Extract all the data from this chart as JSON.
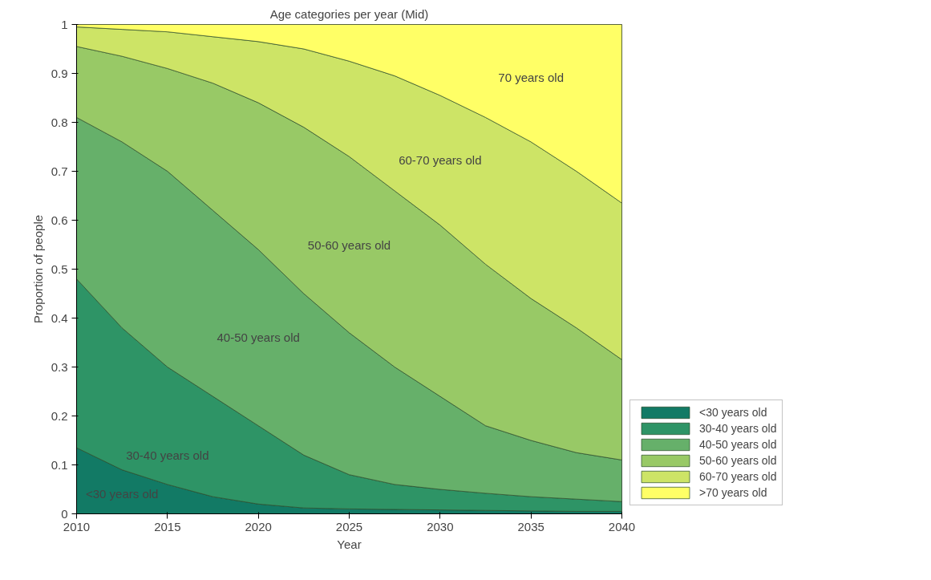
{
  "chart_data": {
    "type": "area",
    "stacked": true,
    "title": "Age categories per year (Mid)",
    "xlabel": "Year",
    "ylabel": "Proportion of people",
    "x": [
      2010,
      2012.5,
      2015,
      2017.5,
      2020,
      2022.5,
      2025,
      2027.5,
      2030,
      2032.5,
      2035,
      2037.5,
      2040
    ],
    "series": [
      {
        "name": "<30 years old",
        "color": "#127a65",
        "values": [
          0.135,
          0.09,
          0.06,
          0.035,
          0.02,
          0.012,
          0.01,
          0.009,
          0.008,
          0.007,
          0.006,
          0.005,
          0.005
        ]
      },
      {
        "name": "30-40 years old",
        "color": "#2e9466",
        "values": [
          0.345,
          0.29,
          0.24,
          0.205,
          0.16,
          0.108,
          0.07,
          0.051,
          0.042,
          0.035,
          0.029,
          0.025,
          0.02
        ]
      },
      {
        "name": "40-50 years old",
        "color": "#66b06a",
        "values": [
          0.33,
          0.38,
          0.4,
          0.38,
          0.36,
          0.33,
          0.29,
          0.24,
          0.19,
          0.138,
          0.115,
          0.095,
          0.085
        ]
      },
      {
        "name": "50-60 years old",
        "color": "#98c966",
        "values": [
          0.145,
          0.175,
          0.21,
          0.26,
          0.3,
          0.34,
          0.36,
          0.36,
          0.35,
          0.33,
          0.29,
          0.255,
          0.205
        ]
      },
      {
        "name": "60-70 years old",
        "color": "#cde466",
        "values": [
          0.04,
          0.055,
          0.075,
          0.095,
          0.125,
          0.16,
          0.195,
          0.235,
          0.265,
          0.3,
          0.32,
          0.32,
          0.32
        ]
      },
      {
        "name": ">70 years old",
        "color": "#ffff66",
        "values": [
          0.005,
          0.01,
          0.015,
          0.025,
          0.035,
          0.05,
          0.075,
          0.105,
          0.145,
          0.19,
          0.24,
          0.3,
          0.365
        ]
      }
    ],
    "annotations": [
      "<30 years old",
      "30-40 years old",
      "40-50 years old",
      "50-60 years old",
      "60-70 years old",
      "70 years old"
    ],
    "xlim": [
      2010,
      2040
    ],
    "xticks": [
      2010,
      2015,
      2020,
      2025,
      2030,
      2035,
      2040
    ],
    "ylim": [
      0,
      1
    ],
    "yticks": [
      0,
      0.1,
      0.2,
      0.3,
      0.4,
      0.5,
      0.6,
      0.7,
      0.8,
      0.9,
      1
    ],
    "grid": false,
    "legend": "right"
  }
}
